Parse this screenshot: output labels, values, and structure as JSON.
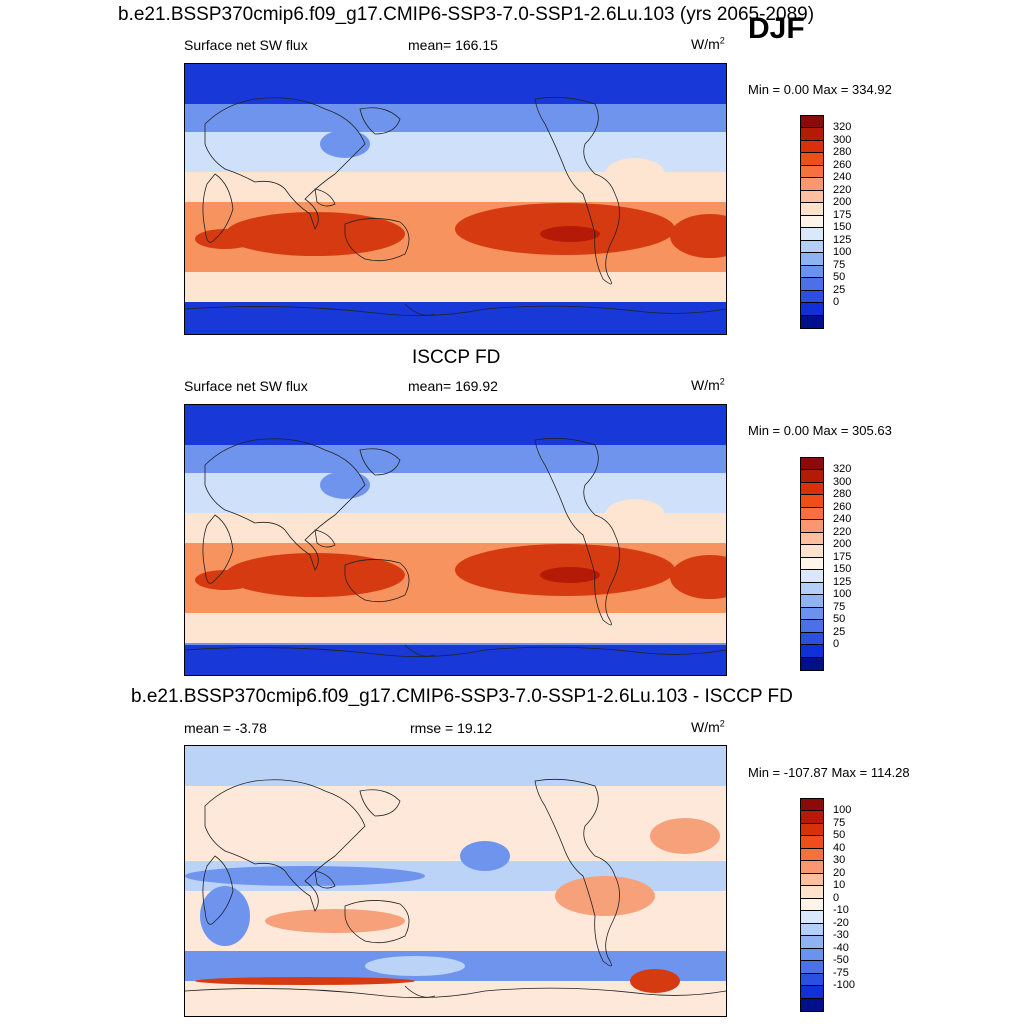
{
  "header": {
    "case_title": "b.e21.BSSP370cmip6.f09_g17.CMIP6-SSP3-7.0-SSP1-2.6Lu.103 (yrs 2065-2089)",
    "season": "DJF"
  },
  "panels": [
    {
      "id": "model",
      "title": "",
      "left_label": "Surface net SW flux",
      "center_label": "mean= 166.15",
      "units": "W/m",
      "units_sup": "2",
      "minmax": "Min =   0.00 Max = 334.92",
      "colorbar_labels": [
        "320",
        "300",
        "280",
        "260",
        "240",
        "220",
        "200",
        "175",
        "150",
        "125",
        "100",
        "75",
        "50",
        "25",
        "0"
      ],
      "colorbar_colors": [
        "#8b0a0a",
        "#b51a06",
        "#d8300a",
        "#ef4e1a",
        "#f77040",
        "#fa9670",
        "#fdbfa0",
        "#fee2cc",
        "#fff4ea",
        "#d9e8fb",
        "#b5d0f8",
        "#8fb2f3",
        "#6b92ee",
        "#4c70e8",
        "#2b4fe1",
        "#1230d8",
        "#00108a"
      ]
    },
    {
      "id": "obs",
      "title": "ISCCP FD",
      "left_label": "Surface net SW flux",
      "center_label": "mean= 169.92",
      "units": "W/m",
      "units_sup": "2",
      "minmax": "Min =   0.00 Max = 305.63",
      "colorbar_labels": [
        "320",
        "300",
        "280",
        "260",
        "240",
        "220",
        "200",
        "175",
        "150",
        "125",
        "100",
        "75",
        "50",
        "25",
        "0"
      ],
      "colorbar_colors": [
        "#8b0a0a",
        "#b51a06",
        "#d8300a",
        "#ef4e1a",
        "#f77040",
        "#fa9670",
        "#fdbfa0",
        "#fee2cc",
        "#fff4ea",
        "#d9e8fb",
        "#b5d0f8",
        "#8fb2f3",
        "#6b92ee",
        "#4c70e8",
        "#2b4fe1",
        "#1230d8",
        "#00108a"
      ]
    },
    {
      "id": "diff",
      "title": "b.e21.BSSP370cmip6.f09_g17.CMIP6-SSP3-7.0-SSP1-2.6Lu.103 - ISCCP FD",
      "left_label": "mean =  -3.78",
      "center_label": "rmse =  19.12",
      "units": "W/m",
      "units_sup": "2",
      "minmax": "Min = -107.87 Max = 114.28",
      "colorbar_labels": [
        "100",
        "75",
        "50",
        "40",
        "30",
        "20",
        "10",
        "0",
        "-10",
        "-20",
        "-30",
        "-40",
        "-50",
        "-75",
        "-100"
      ],
      "colorbar_colors": [
        "#8b0a0a",
        "#b51a06",
        "#d8300a",
        "#ef4e1a",
        "#f77040",
        "#fa9670",
        "#fdbfa0",
        "#fee2cc",
        "#fff4ea",
        "#d9e8fb",
        "#b5d0f8",
        "#8fb2f3",
        "#6b92ee",
        "#4c70e8",
        "#2b4fe1",
        "#1230d8",
        "#00108a"
      ]
    }
  ],
  "colors": {
    "sw_polar": "#1838d8",
    "sw_high": "#6e94ee",
    "sw_mid": "#cfe0fb",
    "sw_low": "#fde5d2",
    "sw_sub": "#f7935f",
    "sw_peak": "#d63a10",
    "sw_max": "#b51a06",
    "diff_neutral": "#fde8da",
    "diff_neg": "#bcd3f8",
    "diff_neg2": "#6e94ee",
    "diff_pos": "#f7a17a",
    "diff_pos2": "#d63a10",
    "coast": "#222222"
  }
}
